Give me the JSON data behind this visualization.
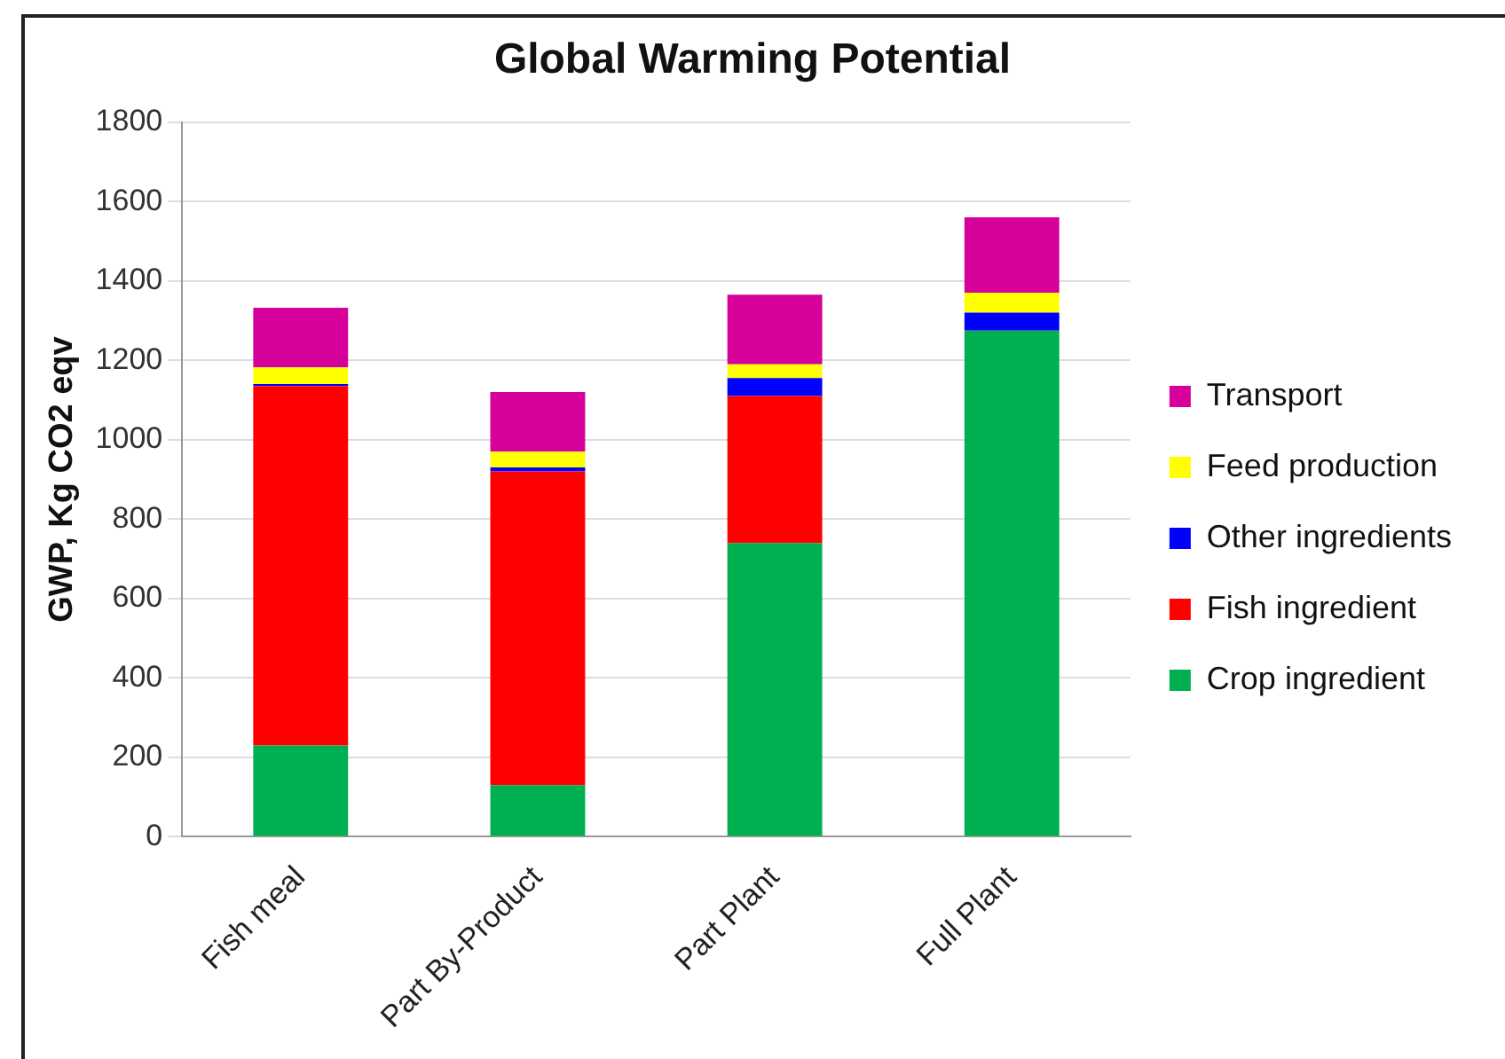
{
  "chart_data": {
    "type": "bar",
    "title": "Global Warming Potential",
    "ylabel": "GWP, Kg CO2 eqv",
    "categories": [
      "Fish meal",
      "Part By-Product",
      "Part Plant",
      "Full Plant"
    ],
    "stacked": true,
    "ylim": [
      0,
      1800
    ],
    "yticks": [
      0,
      200,
      400,
      600,
      800,
      1000,
      1200,
      1400,
      1600,
      1800
    ],
    "grid": "y",
    "legend": "right",
    "series": [
      {
        "name": "Crop ingredient",
        "color": "#00b050",
        "values": [
          230,
          130,
          740,
          1275
        ]
      },
      {
        "name": "Fish ingredient",
        "color": "#ff0000",
        "values": [
          905,
          790,
          370,
          0
        ]
      },
      {
        "name": "Other ingredients",
        "color": "#0000ff",
        "values": [
          5,
          10,
          45,
          45
        ]
      },
      {
        "name": "Feed production",
        "color": "#ffff00",
        "values": [
          42,
          40,
          35,
          50
        ]
      },
      {
        "name": "Transport",
        "color": "#d6009a",
        "values": [
          150,
          150,
          175,
          190
        ]
      }
    ]
  }
}
